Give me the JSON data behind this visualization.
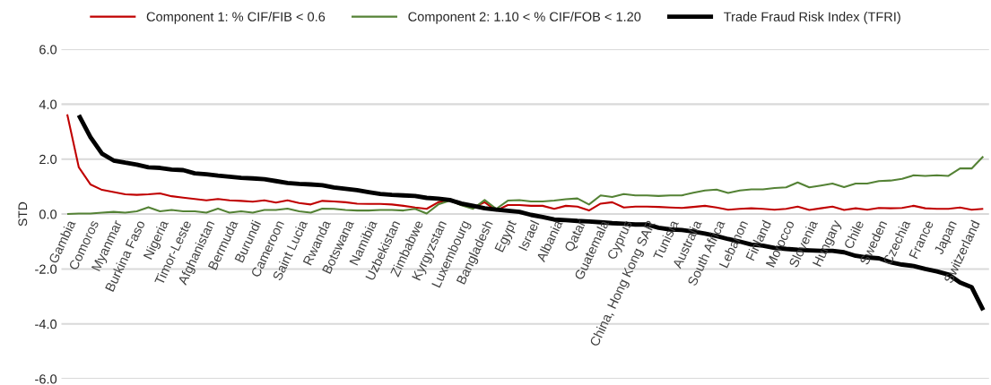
{
  "chart_data": {
    "type": "line",
    "ylabel": "STD",
    "categories": [
      "Gambia",
      null,
      "Comoros",
      null,
      "Myanmar",
      null,
      "Burkina Faso",
      null,
      "Nigeria",
      null,
      "Timor-Leste",
      null,
      "Afghanistan",
      null,
      "Bermuda",
      null,
      "Burundi",
      null,
      "Cameroon",
      null,
      "Saint Lucia",
      null,
      "Rwanda",
      null,
      "Botswana",
      null,
      "Namibia",
      null,
      "Uzbekistan",
      null,
      "Zimbabwe",
      null,
      "Kyrgyzstan",
      null,
      "Luxembourg",
      null,
      "Bangladesh",
      null,
      "Egypt",
      null,
      "Israel",
      null,
      "Albania",
      null,
      "Qatar",
      null,
      "Guatemala",
      null,
      "Cyprus",
      null,
      "China, Hong Kong SAR",
      null,
      "Tunisia",
      null,
      "Australia",
      null,
      "South Africa",
      null,
      "Lebanon",
      null,
      "Finland",
      null,
      "Morocco",
      null,
      "Slovenia",
      null,
      "Hungary",
      null,
      "Chile",
      null,
      "Sweden",
      null,
      "Czechia",
      null,
      "France",
      null,
      "Japan",
      null,
      "Switzerland",
      null
    ],
    "series": [
      {
        "name": "Component 1: % CIF/FIB < 0.6",
        "color": "#c00000",
        "values": [
          3.63,
          1.7,
          1.08,
          0.88,
          0.8,
          0.72,
          0.7,
          0.72,
          0.75,
          0.65,
          0.6,
          0.55,
          0.5,
          0.55,
          0.5,
          0.48,
          0.45,
          0.5,
          0.42,
          0.5,
          0.4,
          0.35,
          0.48,
          0.46,
          0.43,
          0.38,
          0.37,
          0.37,
          0.35,
          0.3,
          0.24,
          0.19,
          0.43,
          0.51,
          0.33,
          0.24,
          0.43,
          0.13,
          0.33,
          0.33,
          0.3,
          0.3,
          0.19,
          0.3,
          0.27,
          0.13,
          0.38,
          0.43,
          0.24,
          0.27,
          0.27,
          0.26,
          0.24,
          0.22,
          0.26,
          0.3,
          0.24,
          0.16,
          0.19,
          0.21,
          0.19,
          0.16,
          0.19,
          0.27,
          0.15,
          0.21,
          0.27,
          0.15,
          0.21,
          0.16,
          0.22,
          0.21,
          0.22,
          0.3,
          0.21,
          0.19,
          0.19,
          0.24,
          0.16,
          0.19
        ]
      },
      {
        "name": "Component 2: 1.10 < % CIF/FOB < 1.20",
        "color": "#548235",
        "values": [
          0.0,
          0.02,
          0.02,
          0.05,
          0.08,
          0.05,
          0.1,
          0.25,
          0.1,
          0.15,
          0.1,
          0.1,
          0.05,
          0.2,
          0.05,
          0.1,
          0.05,
          0.15,
          0.15,
          0.2,
          0.1,
          0.05,
          0.2,
          0.19,
          0.15,
          0.13,
          0.13,
          0.15,
          0.15,
          0.13,
          0.19,
          0.02,
          0.35,
          0.49,
          0.32,
          0.19,
          0.51,
          0.19,
          0.49,
          0.51,
          0.46,
          0.46,
          0.49,
          0.54,
          0.57,
          0.35,
          0.68,
          0.62,
          0.73,
          0.68,
          0.68,
          0.66,
          0.68,
          0.68,
          0.78,
          0.86,
          0.89,
          0.77,
          0.86,
          0.9,
          0.9,
          0.95,
          0.97,
          1.15,
          0.97,
          1.04,
          1.11,
          0.98,
          1.11,
          1.11,
          1.2,
          1.22,
          1.28,
          1.41,
          1.39,
          1.41,
          1.39,
          1.66,
          1.66,
          2.1
        ]
      },
      {
        "name": "Trade Fraud Risk Index (TFRI)",
        "color": "#000000",
        "values": [
          null,
          3.6,
          2.8,
          2.2,
          1.95,
          1.87,
          1.8,
          1.7,
          1.68,
          1.62,
          1.6,
          1.48,
          1.45,
          1.4,
          1.36,
          1.32,
          1.3,
          1.27,
          1.2,
          1.13,
          1.1,
          1.08,
          1.05,
          0.97,
          0.92,
          0.87,
          0.8,
          0.73,
          0.7,
          0.68,
          0.66,
          0.59,
          0.56,
          0.51,
          0.38,
          0.3,
          0.21,
          0.16,
          0.12,
          0.08,
          -0.03,
          -0.11,
          -0.2,
          -0.22,
          -0.25,
          -0.27,
          -0.3,
          -0.33,
          -0.35,
          -0.38,
          -0.38,
          -0.5,
          -0.56,
          -0.58,
          -0.64,
          -0.71,
          -0.8,
          -0.91,
          -1.0,
          -1.11,
          -1.15,
          -1.23,
          -1.27,
          -1.3,
          -1.32,
          -1.34,
          -1.34,
          -1.39,
          -1.52,
          -1.58,
          -1.61,
          -1.75,
          -1.84,
          -1.89,
          -2.0,
          -2.09,
          -2.2,
          -2.49,
          -2.66,
          -3.5
        ]
      }
    ],
    "ylim": [
      -6,
      6
    ],
    "yticks": [
      {
        "value": -6,
        "label": "-6.0"
      },
      {
        "value": -4,
        "label": "-4.0"
      },
      {
        "value": -2,
        "label": "-2.0"
      },
      {
        "value": 0,
        "label": "0.0"
      },
      {
        "value": 2,
        "label": "2.0"
      },
      {
        "value": 4,
        "label": "4.0"
      },
      {
        "value": 6,
        "label": "6.0"
      }
    ],
    "grid": "y",
    "legend": "top",
    "marker": "none",
    "line_style": "solid"
  }
}
